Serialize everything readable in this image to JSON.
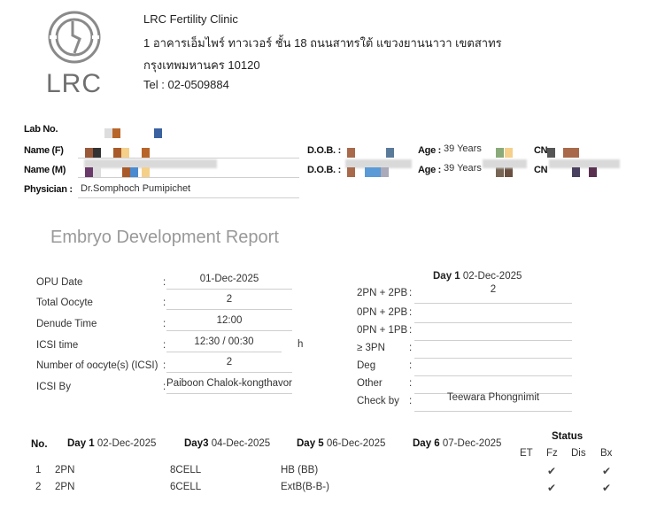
{
  "logo": {
    "text": "LRC"
  },
  "clinic": {
    "name": "LRC Fertility Clinic",
    "address_line1": "1 อาคารเอ็มไพร์ ทาวเวอร์ ชั้น 18 ถนนสาทรใต้ แขวงยานนาวา เขตสาทร",
    "address_line2": "กรุงเทพมหานคร 10120",
    "tel": "Tel : 02-0509884"
  },
  "patient": {
    "lab_no_label": "Lab No.",
    "name_f_label": "Name (F)",
    "name_m_label": "Name (M)",
    "physician_label": "Physician :",
    "physician": "Dr.Somphoch Pumipichet",
    "dob_label": "D.O.B. :",
    "age_label": "Age :",
    "age_f": "39 Years",
    "age_m": "39 Years",
    "cn_label": "CN"
  },
  "title": "Embryo Development Report",
  "procedure": {
    "rows": [
      {
        "label": "OPU Date",
        "value": "01-Dec-2025"
      },
      {
        "label": "Total Oocyte",
        "value": "2"
      },
      {
        "label": "Denude Time",
        "value": "12:00"
      },
      {
        "label": "ICSI time",
        "value": "12:30 / 00:30",
        "unit": "h"
      },
      {
        "label": "Number of oocyte(s) (ICSI)",
        "value": "2"
      },
      {
        "label": "ICSI By",
        "value": "Paiboon Chalok-kongthavor"
      }
    ]
  },
  "day1": {
    "heading_day": "Day 1",
    "heading_date": "02-Dec-2025",
    "rows": [
      {
        "label": "2PN + 2PB",
        "value": "2"
      },
      {
        "label": "0PN + 2PB",
        "value": ""
      },
      {
        "label": "0PN + 1PB",
        "value": ""
      },
      {
        "label": "≥ 3PN",
        "value": ""
      },
      {
        "label": "Deg",
        "value": ""
      },
      {
        "label": "Other",
        "value": ""
      },
      {
        "label": "Check by",
        "value": "Teewara Phongnimit"
      }
    ]
  },
  "embryo_table": {
    "no_header": "No.",
    "days": [
      {
        "day": "Day 1",
        "date": "02-Dec-2025"
      },
      {
        "day": "Day3",
        "date": "04-Dec-2025"
      },
      {
        "day": "Day 5",
        "date": "06-Dec-2025"
      },
      {
        "day": "Day 6",
        "date": "07-Dec-2025"
      }
    ],
    "status_header": "Status",
    "status_cols": [
      "ET",
      "Fz",
      "Dis",
      "Bx"
    ],
    "check_glyph": "✔",
    "rows": [
      {
        "no": "1",
        "day1": "2PN",
        "day3": "8CELL",
        "day5": "HB (BB)",
        "day6": "",
        "et": false,
        "fz": true,
        "dis": false,
        "bx": true
      },
      {
        "no": "2",
        "day1": "2PN",
        "day3": "6CELL",
        "day5": "ExtB(B-B-)",
        "day6": "",
        "et": false,
        "fz": true,
        "dis": false,
        "bx": true
      }
    ]
  }
}
